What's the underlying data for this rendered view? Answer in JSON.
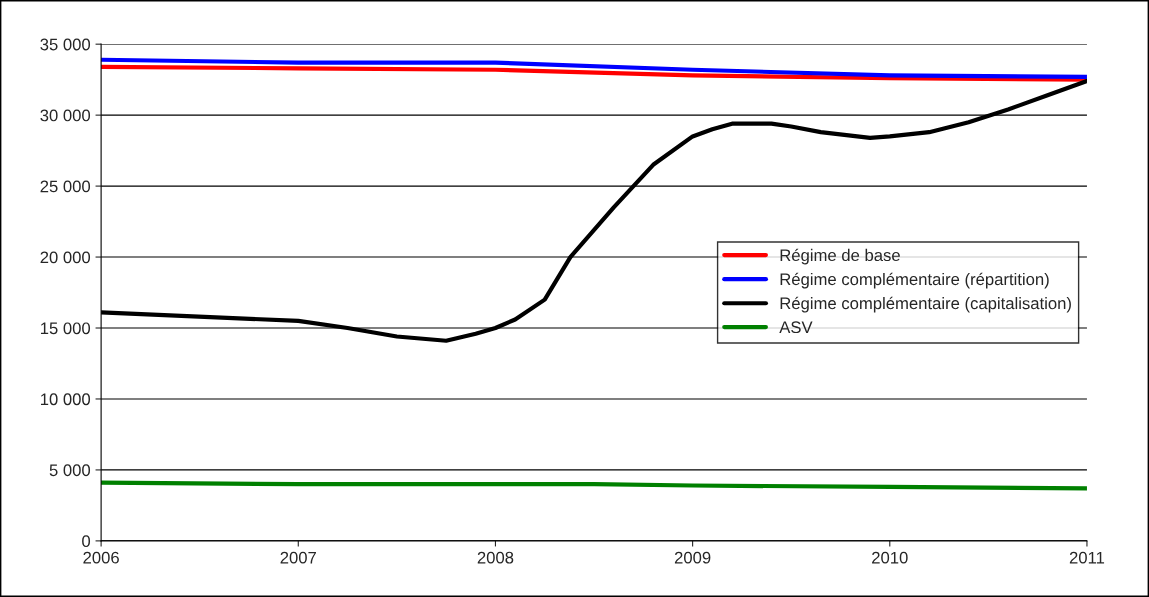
{
  "chart_data": {
    "type": "line",
    "xlim": [
      2006,
      2011
    ],
    "xticks": [
      2006,
      2007,
      2008,
      2009,
      2010,
      2011
    ],
    "ylim": [
      0,
      35000
    ],
    "yticks": [
      0,
      {
        "value": 5000,
        "label": "5 000"
      },
      {
        "value": 10000,
        "label": "10 000"
      },
      {
        "value": 15000,
        "label": "15 000"
      },
      {
        "value": 20000,
        "label": "20 000"
      },
      {
        "value": 25000,
        "label": "25 000"
      },
      {
        "value": 30000,
        "label": "30 000"
      },
      {
        "value": 35000,
        "label": "35 000"
      }
    ],
    "grid": "y",
    "legend": "center right",
    "marker": "none",
    "line_style": "solid",
    "series": [
      {
        "name": "Régime de base",
        "color": "#ff0000",
        "x": [
          2006,
          2007,
          2008,
          2009,
          2010,
          2011
        ],
        "values": [
          33400,
          33300,
          33200,
          32800,
          32600,
          32500
        ]
      },
      {
        "name": "Régime complémentaire (répartition)",
        "color": "#0000ff",
        "x": [
          2006,
          2007,
          2008,
          2009,
          2010,
          2011
        ],
        "values": [
          33900,
          33700,
          33700,
          33200,
          32800,
          32700
        ]
      },
      {
        "name": "Régime complémentaire (capitalisation)",
        "color": "#000000",
        "x": [
          2006,
          2007,
          2007.25,
          2007.5,
          2007.75,
          2007.9,
          2008,
          2008.1,
          2008.25,
          2008.38,
          2008.6,
          2008.8,
          2009,
          2009.1,
          2009.2,
          2009.4,
          2009.5,
          2009.65,
          2009.9,
          2010,
          2010.2,
          2010.4,
          2010.6,
          2010.8,
          2011
        ],
        "values": [
          16100,
          15500,
          15000,
          14400,
          14100,
          14600,
          15000,
          15600,
          17000,
          20000,
          23500,
          26500,
          28500,
          29000,
          29400,
          29400,
          29200,
          28800,
          28400,
          28500,
          28800,
          29500,
          30400,
          31400,
          32400
        ]
      },
      {
        "name": "ASV",
        "color": "#008000",
        "x": [
          2006,
          2007,
          2008,
          2008.5,
          2009,
          2010,
          2011
        ],
        "values": [
          4100,
          4000,
          4000,
          4000,
          3900,
          3800,
          3700
        ]
      }
    ]
  }
}
